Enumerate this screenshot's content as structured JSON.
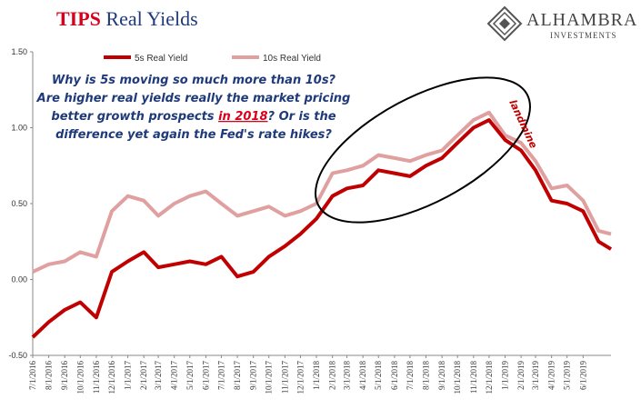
{
  "header": {
    "title_part1": "TIPS",
    "title_part2": "Real Yields",
    "brand": "ALHAMBRA",
    "brand_sub": "INVESTMENTS"
  },
  "colors": {
    "series_5s": "#c00000",
    "series_10s": "#e0a0a0",
    "title_red": "#d9001b",
    "text_navy": "#1f3a7a"
  },
  "annotation": {
    "lines": [
      "Why is 5s moving so much more than 10s?",
      "Are higher real yields really the market pricing",
      [
        "better growth prospects ",
        "in 2018",
        "? Or is the"
      ],
      "difference yet again the Fed's rate hikes?"
    ],
    "peak_label": "landmine"
  },
  "chart_data": {
    "type": "line",
    "title": "TIPS Real Yields",
    "ylim": [
      -0.5,
      1.5
    ],
    "yticks": [
      "1.50",
      "1.00",
      "0.50",
      "0.00",
      "-0.50"
    ],
    "ytick_values": [
      1.5,
      1.0,
      0.5,
      0.0,
      -0.5
    ],
    "x_start": "2016-07-01",
    "x_end": "2019-07-25",
    "xticks": [
      "7/1/2016",
      "8/1/2016",
      "9/1/2016",
      "10/1/2016",
      "11/1/2016",
      "12/1/2016",
      "1/1/2017",
      "2/1/2017",
      "3/1/2017",
      "4/1/2017",
      "5/1/2017",
      "6/1/2017",
      "7/1/2017",
      "8/1/2017",
      "9/1/2017",
      "10/1/2017",
      "11/1/2017",
      "12/1/2017",
      "1/1/2018",
      "2/1/2018",
      "3/1/2018",
      "4/1/2018",
      "5/1/2018",
      "6/1/2018",
      "7/1/2018",
      "8/1/2018",
      "9/1/2018",
      "10/1/2018",
      "11/1/2018",
      "12/1/2018",
      "1/1/2019",
      "2/1/2019",
      "3/1/2019",
      "4/1/2019",
      "5/1/2019",
      "6/1/2019"
    ],
    "legend_placement": "top",
    "grid": false,
    "series": [
      {
        "name": "5s Real Yield",
        "color": "#c00000",
        "x": [
          "2016-07-01",
          "2016-08-01",
          "2016-09-01",
          "2016-10-01",
          "2016-11-01",
          "2016-12-01",
          "2017-01-01",
          "2017-02-01",
          "2017-03-01",
          "2017-04-01",
          "2017-05-01",
          "2017-06-01",
          "2017-07-01",
          "2017-08-01",
          "2017-09-01",
          "2017-10-01",
          "2017-11-01",
          "2017-12-01",
          "2018-01-01",
          "2018-02-01",
          "2018-03-01",
          "2018-04-01",
          "2018-05-01",
          "2018-06-01",
          "2018-07-01",
          "2018-08-01",
          "2018-09-01",
          "2018-10-01",
          "2018-11-01",
          "2018-12-01",
          "2019-01-01",
          "2019-02-01",
          "2019-03-01",
          "2019-04-01",
          "2019-05-01",
          "2019-06-01",
          "2019-07-01",
          "2019-07-25"
        ],
        "values": [
          -0.38,
          -0.28,
          -0.2,
          -0.15,
          -0.25,
          0.05,
          0.12,
          0.18,
          0.08,
          0.1,
          0.12,
          0.1,
          0.15,
          0.02,
          0.05,
          0.15,
          0.22,
          0.3,
          0.4,
          0.55,
          0.6,
          0.62,
          0.72,
          0.7,
          0.68,
          0.75,
          0.8,
          0.9,
          1.0,
          1.05,
          0.92,
          0.85,
          0.72,
          0.52,
          0.5,
          0.45,
          0.25,
          0.2
        ]
      },
      {
        "name": "10s Real Yield",
        "color": "#e0a0a0",
        "x": [
          "2016-07-01",
          "2016-08-01",
          "2016-09-01",
          "2016-10-01",
          "2016-11-01",
          "2016-12-01",
          "2017-01-01",
          "2017-02-01",
          "2017-03-01",
          "2017-04-01",
          "2017-05-01",
          "2017-06-01",
          "2017-07-01",
          "2017-08-01",
          "2017-09-01",
          "2017-10-01",
          "2017-11-01",
          "2017-12-01",
          "2018-01-01",
          "2018-02-01",
          "2018-03-01",
          "2018-04-01",
          "2018-05-01",
          "2018-06-01",
          "2018-07-01",
          "2018-08-01",
          "2018-09-01",
          "2018-10-01",
          "2018-11-01",
          "2018-12-01",
          "2019-01-01",
          "2019-02-01",
          "2019-03-01",
          "2019-04-01",
          "2019-05-01",
          "2019-06-01",
          "2019-07-01",
          "2019-07-25"
        ],
        "values": [
          0.05,
          0.1,
          0.12,
          0.18,
          0.15,
          0.45,
          0.55,
          0.52,
          0.42,
          0.5,
          0.55,
          0.58,
          0.5,
          0.42,
          0.45,
          0.48,
          0.42,
          0.45,
          0.5,
          0.7,
          0.72,
          0.75,
          0.82,
          0.8,
          0.78,
          0.82,
          0.85,
          0.95,
          1.05,
          1.1,
          0.95,
          0.9,
          0.78,
          0.6,
          0.62,
          0.52,
          0.32,
          0.3
        ]
      }
    ]
  }
}
